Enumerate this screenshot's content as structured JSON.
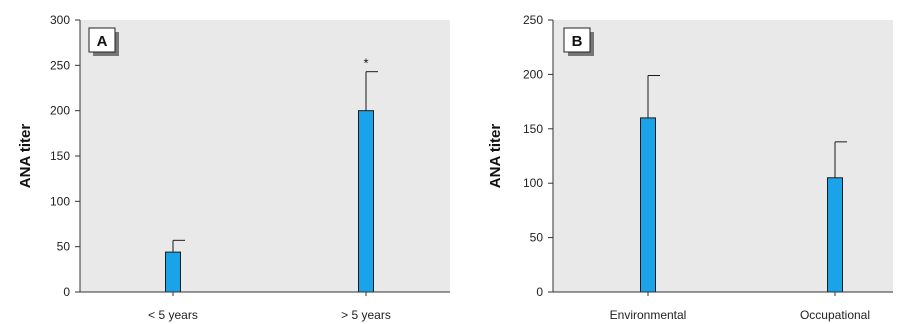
{
  "colors": {
    "plot_background": "#e9e9e9",
    "bar_fill": "#1aa3e8",
    "bar_stroke": "#1a1a1a",
    "axis": "#333333"
  },
  "chart_data": [
    {
      "type": "bar",
      "panel_label": "A",
      "ylabel": "ANA titer",
      "xlabel": "",
      "categories": [
        "< 5 years",
        "> 5 years"
      ],
      "values": [
        44,
        200
      ],
      "error_upper": [
        57,
        243
      ],
      "markers": [
        "",
        "*"
      ],
      "ylim": [
        0,
        300
      ],
      "yticks": [
        0,
        50,
        100,
        150,
        200,
        250,
        300
      ],
      "grid": false,
      "legend": "none"
    },
    {
      "type": "bar",
      "panel_label": "B",
      "ylabel": "ANA titer",
      "xlabel": "",
      "categories": [
        "Environmental",
        "Occupational"
      ],
      "values": [
        160,
        105
      ],
      "error_upper": [
        199,
        138
      ],
      "markers": [
        "",
        ""
      ],
      "ylim": [
        0,
        250
      ],
      "yticks": [
        0,
        50,
        100,
        150,
        200,
        250
      ],
      "grid": false,
      "legend": "none"
    }
  ]
}
